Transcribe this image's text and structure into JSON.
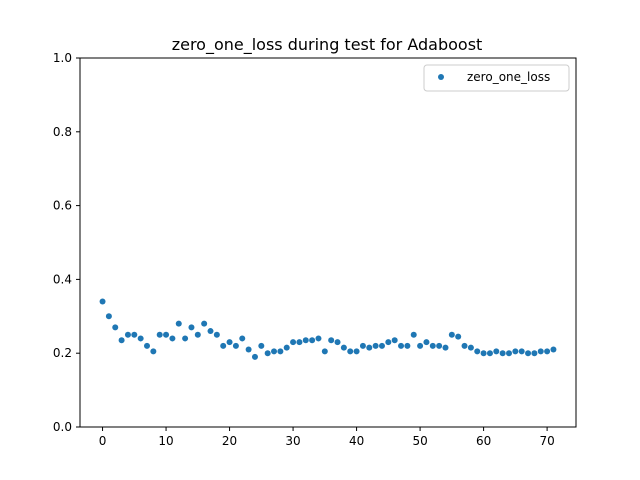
{
  "chart_data": {
    "type": "scatter",
    "title": "zero_one_loss during test for Adaboost",
    "xlabel": "",
    "ylabel": "",
    "xlim": [
      -3.55,
      74.55
    ],
    "ylim": [
      0.0,
      1.0
    ],
    "xticks": [
      0,
      10,
      20,
      30,
      40,
      50,
      60,
      70
    ],
    "xtick_labels": [
      "0",
      "10",
      "20",
      "30",
      "40",
      "50",
      "60",
      "70"
    ],
    "yticks": [
      0.0,
      0.2,
      0.4,
      0.6,
      0.8,
      1.0
    ],
    "ytick_labels": [
      "0.0",
      "0.2",
      "0.4",
      "0.6",
      "0.8",
      "1.0"
    ],
    "grid": false,
    "legend_position": "upper-right",
    "series": [
      {
        "name": "zero_one_loss",
        "color": "#1f77b4",
        "x": [
          0,
          1,
          2,
          3,
          4,
          5,
          6,
          7,
          8,
          9,
          10,
          11,
          12,
          13,
          14,
          15,
          16,
          17,
          18,
          19,
          20,
          21,
          22,
          23,
          24,
          25,
          26,
          27,
          28,
          29,
          30,
          31,
          32,
          33,
          34,
          35,
          36,
          37,
          38,
          39,
          40,
          41,
          42,
          43,
          44,
          45,
          46,
          47,
          48,
          49,
          50,
          51,
          52,
          53,
          54,
          55,
          56,
          57,
          58,
          59,
          60,
          61,
          62,
          63,
          64,
          65,
          66,
          67,
          68,
          69,
          70,
          71
        ],
        "y": [
          0.34,
          0.3,
          0.27,
          0.235,
          0.25,
          0.25,
          0.24,
          0.22,
          0.205,
          0.25,
          0.25,
          0.24,
          0.28,
          0.24,
          0.27,
          0.25,
          0.28,
          0.26,
          0.25,
          0.22,
          0.23,
          0.22,
          0.24,
          0.21,
          0.19,
          0.22,
          0.2,
          0.205,
          0.205,
          0.215,
          0.23,
          0.23,
          0.235,
          0.235,
          0.24,
          0.205,
          0.235,
          0.23,
          0.215,
          0.205,
          0.205,
          0.22,
          0.215,
          0.22,
          0.22,
          0.23,
          0.235,
          0.22,
          0.22,
          0.25,
          0.22,
          0.23,
          0.22,
          0.22,
          0.215,
          0.25,
          0.245,
          0.22,
          0.215,
          0.205,
          0.2,
          0.2,
          0.205,
          0.2,
          0.2,
          0.205,
          0.205,
          0.2,
          0.2,
          0.205,
          0.205,
          0.21
        ]
      }
    ]
  }
}
